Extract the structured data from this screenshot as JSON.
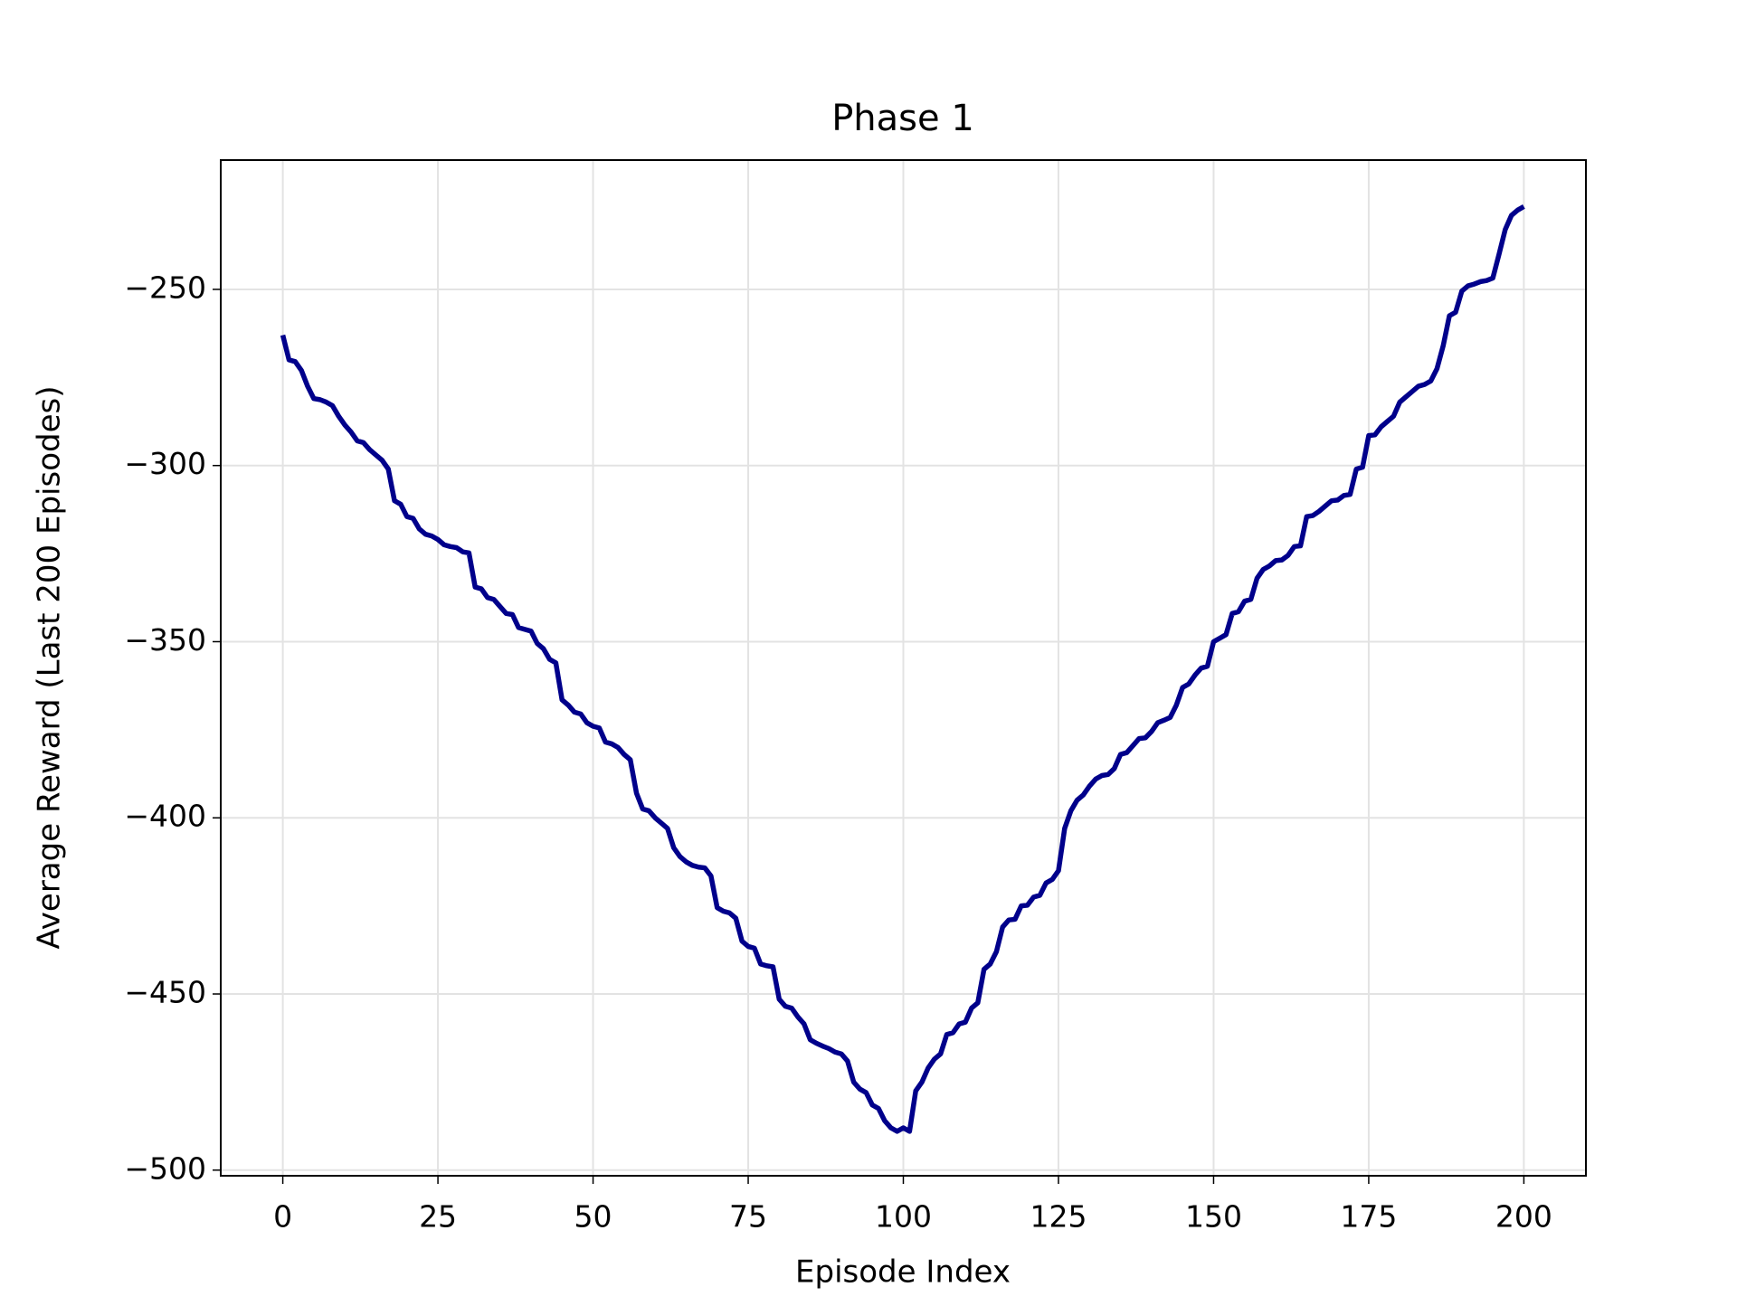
{
  "chart_data": {
    "type": "line",
    "title": "Phase 1",
    "x_label": "Episode Index",
    "y_label": "Average Reward (Last 200 Episodes)",
    "x": [
      0,
      1,
      2,
      3,
      4,
      5,
      6,
      7,
      8,
      9,
      10,
      11,
      12,
      13,
      14,
      15,
      16,
      17,
      18,
      19,
      20,
      21,
      22,
      23,
      24,
      25,
      26,
      27,
      28,
      29,
      30,
      31,
      32,
      33,
      34,
      35,
      36,
      37,
      38,
      39,
      40,
      41,
      42,
      43,
      44,
      45,
      46,
      47,
      48,
      49,
      50,
      51,
      52,
      53,
      54,
      55,
      56,
      57,
      58,
      59,
      60,
      61,
      62,
      63,
      64,
      65,
      66,
      67,
      68,
      69,
      70,
      71,
      72,
      73,
      74,
      75,
      76,
      77,
      78,
      79,
      80,
      81,
      82,
      83,
      84,
      85,
      86,
      87,
      88,
      89,
      90,
      91,
      92,
      93,
      94,
      95,
      96,
      97,
      98,
      99,
      100,
      101,
      102,
      103,
      104,
      105,
      106,
      107,
      108,
      109,
      110,
      111,
      112,
      113,
      114,
      115,
      116,
      117,
      118,
      119,
      120,
      121,
      122,
      123,
      124,
      125,
      126,
      127,
      128,
      129,
      130,
      131,
      132,
      133,
      134,
      135,
      136,
      137,
      138,
      139,
      140,
      141,
      142,
      143,
      144,
      145,
      146,
      147,
      148,
      149,
      150,
      151,
      152,
      153,
      154,
      155,
      156,
      157,
      158,
      159,
      160,
      161,
      162,
      163,
      164,
      165,
      166,
      167,
      168,
      169,
      170,
      171,
      172,
      173,
      174,
      175,
      176,
      177,
      178,
      179,
      180,
      181,
      182,
      183,
      184,
      185,
      186,
      187,
      188,
      189,
      190,
      191,
      192,
      193,
      194,
      195,
      196,
      197,
      198,
      199,
      200
    ],
    "series": [
      {
        "name": "Average Reward",
        "color": "#00008b",
        "values": [
          -263,
          -270,
          -270.5,
          -273,
          -277.5,
          -281,
          -281.3,
          -282,
          -283,
          -286,
          -288.5,
          -290.5,
          -293,
          -293.5,
          -295.5,
          -297,
          -298.5,
          -301,
          -310,
          -311,
          -314.5,
          -315,
          -318,
          -319.5,
          -320,
          -321,
          -322.5,
          -323,
          -323.3,
          -324.5,
          -324.8,
          -334.5,
          -335,
          -337.5,
          -338,
          -340,
          -342,
          -342.3,
          -346,
          -346.5,
          -347,
          -350.5,
          -352,
          -355,
          -356,
          -366.5,
          -368,
          -370,
          -370.5,
          -373,
          -374,
          -374.5,
          -378.5,
          -379,
          -380,
          -382,
          -383.5,
          -393,
          -397.5,
          -398,
          -400,
          -401.5,
          -403,
          -408.5,
          -411,
          -412.5,
          -413.5,
          -414,
          -414.2,
          -416.5,
          -425.5,
          -426.5,
          -427,
          -428.5,
          -435,
          -436.5,
          -437,
          -441.5,
          -442,
          -442.3,
          -451.5,
          -453.5,
          -454,
          -456.5,
          -458.5,
          -463,
          -464,
          -464.8,
          -465.5,
          -466.5,
          -467,
          -469,
          -475,
          -477,
          -478,
          -481.5,
          -482.5,
          -486,
          -488,
          -489,
          -488,
          -489,
          -477.5,
          -475,
          -471,
          -468.5,
          -467,
          -461.5,
          -461,
          -458.5,
          -458,
          -454,
          -452.5,
          -443,
          -441.5,
          -438,
          -431,
          -429,
          -428.8,
          -425,
          -424.8,
          -422.5,
          -422,
          -418.5,
          -417.5,
          -415,
          -403,
          -398,
          -395,
          -393.5,
          -391,
          -389,
          -388,
          -387.7,
          -386,
          -382,
          -381.5,
          -379.5,
          -377.5,
          -377.3,
          -375.5,
          -373,
          -372.3,
          -371.5,
          -368,
          -363,
          -362,
          -359.5,
          -357.5,
          -357,
          -350,
          -349,
          -348,
          -342,
          -341.5,
          -338.5,
          -338,
          -332,
          -329.5,
          -328.5,
          -327,
          -326.8,
          -325.5,
          -323,
          -322.8,
          -314.5,
          -314.2,
          -313,
          -311.5,
          -310,
          -309.8,
          -308.5,
          -308.2,
          -301,
          -300.5,
          -291.5,
          -291.3,
          -289,
          -287.5,
          -286,
          -282,
          -280.5,
          -279,
          -277.5,
          -277,
          -276,
          -272.5,
          -266,
          -257.5,
          -256.5,
          -250.5,
          -249,
          -248.5,
          -247.8,
          -247.5,
          -246.8,
          -240,
          -233,
          -229,
          -227.5,
          -226.5
        ]
      }
    ],
    "xlim": [
      -10,
      210
    ],
    "ylim": [
      -501.6,
      -213.3
    ],
    "xticks": [
      0,
      25,
      50,
      75,
      100,
      125,
      150,
      175,
      200
    ],
    "yticks": [
      {
        "value": -500,
        "label": "−500"
      },
      {
        "value": -450,
        "label": "−450"
      },
      {
        "value": -400,
        "label": "−400"
      },
      {
        "value": -350,
        "label": "−350"
      },
      {
        "value": -300,
        "label": "−300"
      },
      {
        "value": -250,
        "label": "−250"
      }
    ],
    "grid": true
  }
}
